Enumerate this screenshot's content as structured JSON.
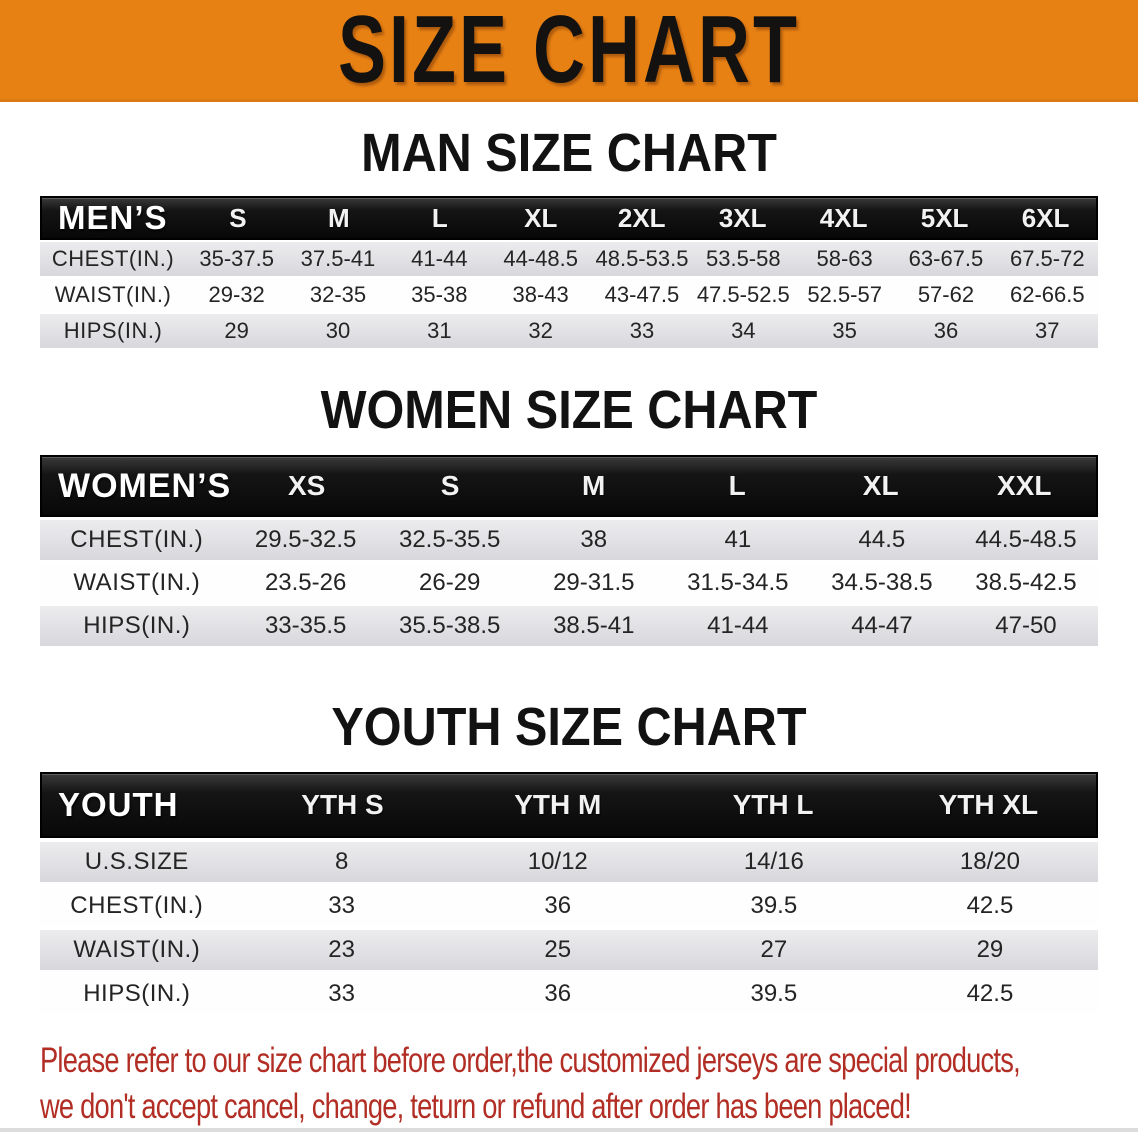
{
  "banner": {
    "title": "SIZE CHART"
  },
  "colors": {
    "banner_bg": "#E88114",
    "table_header_bg": "#141414",
    "row_gray": "#E2E2E5",
    "note_red": "#B22E25"
  },
  "sections": [
    {
      "heading": "MAN SIZE CHART",
      "group_label": "MEN’S",
      "sizes": [
        "S",
        "M",
        "L",
        "XL",
        "2XL",
        "3XL",
        "4XL",
        "5XL",
        "6XL"
      ],
      "rows": [
        {
          "label": "CHEST(IN.)",
          "values": [
            "35-37.5",
            "37.5-41",
            "41-44",
            "44-48.5",
            "48.5-53.5",
            "53.5-58",
            "58-63",
            "63-67.5",
            "67.5-72"
          ]
        },
        {
          "label": "WAIST(IN.)",
          "values": [
            "29-32",
            "32-35",
            "35-38",
            "38-43",
            "43-47.5",
            "47.5-52.5",
            "52.5-57",
            "57-62",
            "62-66.5"
          ]
        },
        {
          "label": "HIPS(IN.)",
          "values": [
            "29",
            "30",
            "31",
            "32",
            "33",
            "34",
            "35",
            "36",
            "37"
          ]
        }
      ]
    },
    {
      "heading": "WOMEN SIZE CHART",
      "group_label": "WOMEN’S",
      "sizes": [
        "XS",
        "S",
        "M",
        "L",
        "XL",
        "XXL"
      ],
      "rows": [
        {
          "label": "CHEST(IN.)",
          "values": [
            "29.5-32.5",
            "32.5-35.5",
            "38",
            "41",
            "44.5",
            "44.5-48.5"
          ]
        },
        {
          "label": "WAIST(IN.)",
          "values": [
            "23.5-26",
            "26-29",
            "29-31.5",
            "31.5-34.5",
            "34.5-38.5",
            "38.5-42.5"
          ]
        },
        {
          "label": "HIPS(IN.)",
          "values": [
            "33-35.5",
            "35.5-38.5",
            "38.5-41",
            "41-44",
            "44-47",
            "47-50"
          ]
        }
      ]
    },
    {
      "heading": "YOUTH SIZE CHART",
      "group_label": "YOUTH",
      "sizes": [
        "YTH S",
        "YTH M",
        "YTH L",
        "YTH XL"
      ],
      "rows": [
        {
          "label": "U.S.SIZE",
          "values": [
            "8",
            "10/12",
            "14/16",
            "18/20"
          ]
        },
        {
          "label": "CHEST(IN.)",
          "values": [
            "33",
            "36",
            "39.5",
            "42.5"
          ]
        },
        {
          "label": "WAIST(IN.)",
          "values": [
            "23",
            "25",
            "27",
            "29"
          ]
        },
        {
          "label": "HIPS(IN.)",
          "values": [
            "33",
            "36",
            "39.5",
            "42.5"
          ]
        }
      ]
    }
  ],
  "note": {
    "line1": "Please refer to our size chart before order,the customized jerseys are special products,",
    "line2": "we don't accept cancel, change, teturn or refund after order has been placed!"
  }
}
